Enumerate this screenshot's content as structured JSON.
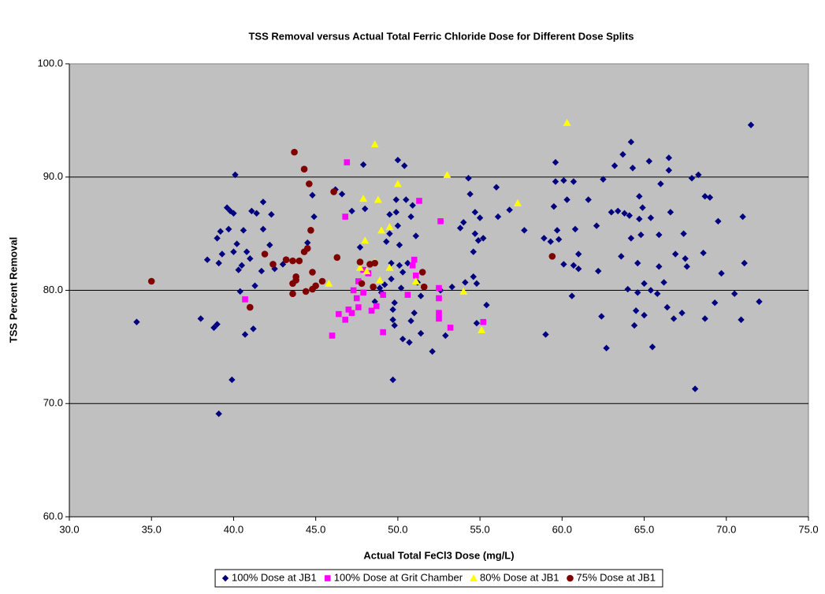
{
  "chart_data": {
    "type": "scatter",
    "title": "TSS Removal versus Actual Total Ferric Chloride Dose for Different Dose Splits",
    "x_label": "Actual Total FeCl3 Dose (mg/L)",
    "y_label": "TSS Percent Removal",
    "xlim": [
      30,
      75
    ],
    "ylim": [
      60,
      100
    ],
    "xticks": [
      {
        "value": 30,
        "label": "30.0"
      },
      {
        "value": 35,
        "label": "35.0"
      },
      {
        "value": 40,
        "label": "40.0"
      },
      {
        "value": 45,
        "label": "45.0"
      },
      {
        "value": 50,
        "label": "50.0"
      },
      {
        "value": 55,
        "label": "55.0"
      },
      {
        "value": 60,
        "label": "60.0"
      },
      {
        "value": 65,
        "label": "65.0"
      },
      {
        "value": 70,
        "label": "70.0"
      },
      {
        "value": 75,
        "label": "75.0"
      }
    ],
    "yticks": [
      {
        "value": 60,
        "label": "60.0"
      },
      {
        "value": 70,
        "label": "70.0"
      },
      {
        "value": 80,
        "label": "80.0"
      },
      {
        "value": 90,
        "label": "90.0"
      },
      {
        "value": 100,
        "label": "100.0"
      }
    ],
    "grid": true,
    "legend": "bottom",
    "series": [
      {
        "name": "100% Dose at JB1",
        "color": "#000080",
        "marker": "diamond",
        "x": [
          34.1,
          38.0,
          38.4,
          38.8,
          39.1,
          39.0,
          39.0,
          39.2,
          39.3,
          39.1,
          39.6,
          39.8,
          39.7,
          40.0,
          39.9,
          40.1,
          40.2,
          40.0,
          40.3,
          40.4,
          40.5,
          40.7,
          40.6,
          40.8,
          41.0,
          41.1,
          41.2,
          41.3,
          41.4,
          41.7,
          41.8,
          41.8,
          42.2,
          42.3,
          42.5,
          43.0,
          44.5,
          44.8,
          44.9,
          46.2,
          46.6,
          47.2,
          47.7,
          47.9,
          48.0,
          48.6,
          48.9,
          49.0,
          49.2,
          49.3,
          49.5,
          49.5,
          49.6,
          49.6,
          49.7,
          49.7,
          49.7,
          49.8,
          49.8,
          49.9,
          49.9,
          50.0,
          50.0,
          50.1,
          50.1,
          50.2,
          50.3,
          50.3,
          50.4,
          50.5,
          50.6,
          50.7,
          50.8,
          50.8,
          50.9,
          51.0,
          51.1,
          51.2,
          51.4,
          51.4,
          52.1,
          52.6,
          52.9,
          53.3,
          53.8,
          54.0,
          54.1,
          54.3,
          54.4,
          54.6,
          54.6,
          54.7,
          54.7,
          54.8,
          54.8,
          54.9,
          55.0,
          55.2,
          55.4,
          56.0,
          56.1,
          56.8,
          57.7,
          58.9,
          59.0,
          59.3,
          59.5,
          59.6,
          59.6,
          59.7,
          59.8,
          60.1,
          60.1,
          60.3,
          60.6,
          60.7,
          60.7,
          60.8,
          61.0,
          61.0,
          61.6,
          62.1,
          62.2,
          62.4,
          62.5,
          62.7,
          63.0,
          63.2,
          63.4,
          63.6,
          63.7,
          63.8,
          64.0,
          64.1,
          64.2,
          64.2,
          64.3,
          64.4,
          64.5,
          64.6,
          64.6,
          64.7,
          64.7,
          64.8,
          64.9,
          65.0,
          65.0,
          65.3,
          65.4,
          65.4,
          65.5,
          65.8,
          65.9,
          65.9,
          66.0,
          66.2,
          66.4,
          66.5,
          66.5,
          66.6,
          66.8,
          66.9,
          67.3,
          67.4,
          67.5,
          67.6,
          67.9,
          68.1,
          68.3,
          68.6,
          68.7,
          68.7,
          69.0,
          69.3,
          69.5,
          69.7,
          70.5,
          70.9,
          71.0,
          71.1,
          71.5,
          72.0
        ],
        "values": [
          77.2,
          77.5,
          82.7,
          76.7,
          69.1,
          77.0,
          84.6,
          85.2,
          83.2,
          82.4,
          87.3,
          87.0,
          85.4,
          86.8,
          72.1,
          90.2,
          84.1,
          83.4,
          81.8,
          79.9,
          82.2,
          76.1,
          85.3,
          83.4,
          82.8,
          87.0,
          76.6,
          80.4,
          86.8,
          81.7,
          87.8,
          85.4,
          84.0,
          86.7,
          81.9,
          82.3,
          84.2,
          88.4,
          86.5,
          88.9,
          88.5,
          87.0,
          83.8,
          91.1,
          87.2,
          79.0,
          80.2,
          79.8,
          80.5,
          84.3,
          86.7,
          85.0,
          82.4,
          81.0,
          78.3,
          77.4,
          72.1,
          78.9,
          76.9,
          88.0,
          86.9,
          91.5,
          85.7,
          84.0,
          82.2,
          80.2,
          81.6,
          75.7,
          91.0,
          88.0,
          82.4,
          75.4,
          77.3,
          86.5,
          87.5,
          78.0,
          84.8,
          80.7,
          79.5,
          76.2,
          74.6,
          80.0,
          76.0,
          80.3,
          85.5,
          86.0,
          80.7,
          89.9,
          88.5,
          81.2,
          83.4,
          85.0,
          86.9,
          77.1,
          80.6,
          84.4,
          86.4,
          84.6,
          78.7,
          89.1,
          86.5,
          87.1,
          85.3,
          84.6,
          76.1,
          84.3,
          87.4,
          91.3,
          89.6,
          85.3,
          84.5,
          82.3,
          89.7,
          88.0,
          79.5,
          89.6,
          82.2,
          85.4,
          83.2,
          81.9,
          88.0,
          85.7,
          81.7,
          77.7,
          89.8,
          74.9,
          86.9,
          91.0,
          87.0,
          83.0,
          92.0,
          86.8,
          80.1,
          86.6,
          93.1,
          84.6,
          90.8,
          76.9,
          78.2,
          82.4,
          79.8,
          88.3,
          86.3,
          84.9,
          87.3,
          80.6,
          77.8,
          91.4,
          86.4,
          80.0,
          75.0,
          79.7,
          82.1,
          84.9,
          89.4,
          80.7,
          78.5,
          90.6,
          91.7,
          86.9,
          77.5,
          83.2,
          78.0,
          85.0,
          82.8,
          82.1,
          89.9,
          71.3,
          90.2,
          83.3,
          77.5,
          88.3,
          88.2,
          78.9,
          86.1,
          81.5,
          79.7,
          77.4,
          86.5,
          82.4,
          94.6,
          79.0
        ]
      },
      {
        "name": "100% Dose at Grit Chamber",
        "color": "#ff00ff",
        "marker": "square",
        "x": [
          40.7,
          46.0,
          46.4,
          46.8,
          46.9,
          46.8,
          47.0,
          47.2,
          47.3,
          47.5,
          47.6,
          47.6,
          47.9,
          48.2,
          48.4,
          48.7,
          49.1,
          49.1,
          50.6,
          50.9,
          51.0,
          51.1,
          51.3,
          52.5,
          52.5,
          52.5,
          52.5,
          52.6,
          53.2,
          55.2,
          47.9
        ],
        "values": [
          79.2,
          76.0,
          77.9,
          86.5,
          91.3,
          77.4,
          78.3,
          78.0,
          80.0,
          79.3,
          80.8,
          78.5,
          79.8,
          81.5,
          78.2,
          78.6,
          76.3,
          79.6,
          79.6,
          82.2,
          82.7,
          81.3,
          87.9,
          80.2,
          79.3,
          78.0,
          77.5,
          86.1,
          76.7,
          77.2,
          81.8
        ]
      },
      {
        "name": "80% Dose at JB1",
        "color": "#ffff00",
        "marker": "triangle",
        "x": [
          45.8,
          47.7,
          47.9,
          48.0,
          48.1,
          48.6,
          48.6,
          48.8,
          48.9,
          49.0,
          49.5,
          49.5,
          50.0,
          51.1,
          53.0,
          54.0,
          55.1,
          57.3,
          60.3
        ],
        "values": [
          80.6,
          82.0,
          88.1,
          84.4,
          81.7,
          82.5,
          92.9,
          88.0,
          80.9,
          85.3,
          85.6,
          82.0,
          89.4,
          80.8,
          90.2,
          79.9,
          76.5,
          87.7,
          94.8
        ]
      },
      {
        "name": "75% Dose at JB1",
        "color": "#800000",
        "marker": "circle",
        "x": [
          35.0,
          41.0,
          41.9,
          42.4,
          43.2,
          43.6,
          43.6,
          43.6,
          43.7,
          43.8,
          43.8,
          44.0,
          44.3,
          44.3,
          44.5,
          44.4,
          44.6,
          44.7,
          44.8,
          44.8,
          45.0,
          45.4,
          46.1,
          46.3,
          47.7,
          47.8,
          48.3,
          48.5,
          48.6,
          51.5,
          51.6,
          59.4
        ],
        "values": [
          80.8,
          78.5,
          83.2,
          82.3,
          82.7,
          82.6,
          79.7,
          80.6,
          92.2,
          81.2,
          80.9,
          82.6,
          83.4,
          90.7,
          83.7,
          79.9,
          89.4,
          85.3,
          81.6,
          80.1,
          80.4,
          80.8,
          88.7,
          82.9,
          82.5,
          80.6,
          82.3,
          80.3,
          82.4,
          81.6,
          80.3,
          83.0
        ]
      }
    ]
  }
}
